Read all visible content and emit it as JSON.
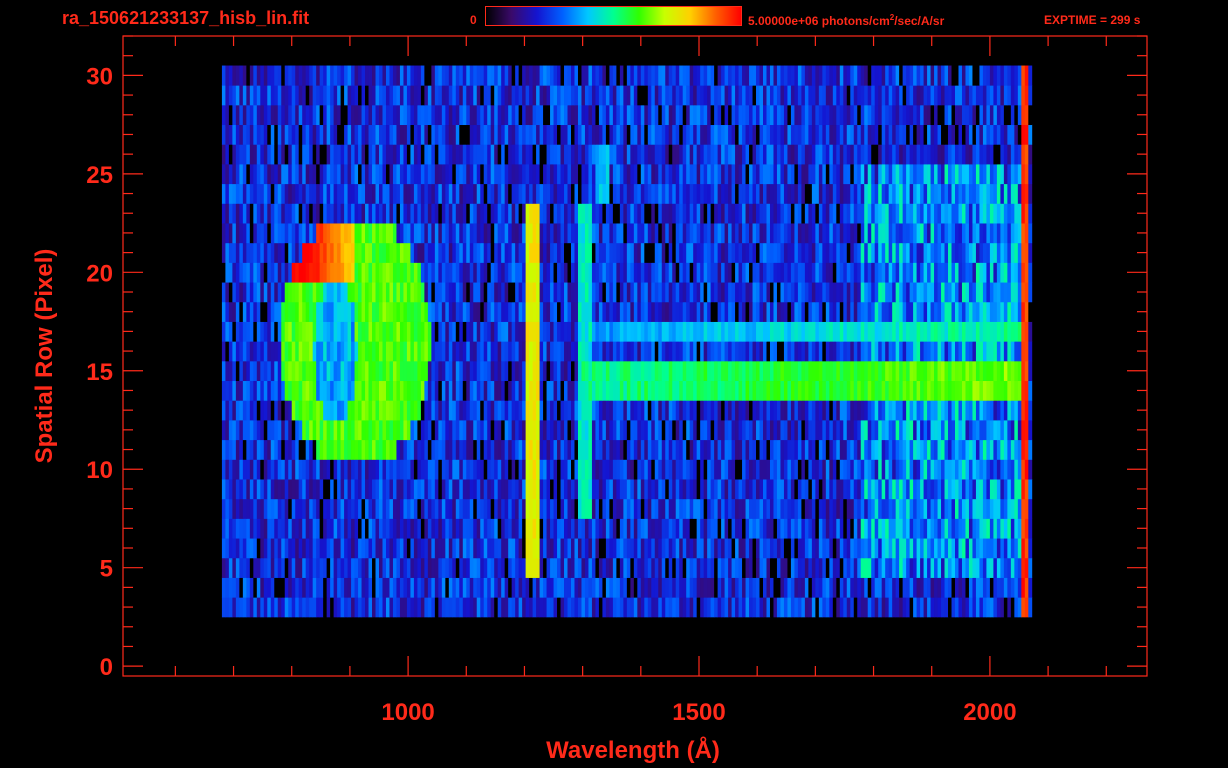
{
  "header": {
    "title": "ra_150621233137_hisb_lin.fit",
    "colorbar_min": "0",
    "colorbar_max_prefix": "5.00000e+06 photons/cm",
    "colorbar_max_sup": "2",
    "colorbar_max_suffix": "/sec/A/sr",
    "exptime": "EXPTIME = 299 s"
  },
  "colors": {
    "axis": "#ff2a1a",
    "background": "#000000",
    "colormap": [
      "#000000",
      "#3a0a6a",
      "#1414d0",
      "#0060ff",
      "#00c8ff",
      "#00ff90",
      "#30ff00",
      "#c8ff00",
      "#ffd000",
      "#ff6000",
      "#ff0000"
    ]
  },
  "chart_data": {
    "type": "heatmap",
    "title": "ra_150621233137_hisb_lin.fit",
    "xlabel": "Wavelength (Å)",
    "ylabel": "Spatial Row (Pixel)",
    "xlim": [
      510,
      2270
    ],
    "ylim": [
      -0.5,
      32
    ],
    "xticks": [
      1000,
      1500,
      2000
    ],
    "xtick_labels": [
      "1000",
      "1500",
      "2000"
    ],
    "yticks": [
      0,
      5,
      10,
      15,
      20,
      25,
      30
    ],
    "ytick_labels": [
      "0",
      "5",
      "10",
      "15",
      "20",
      "25",
      "30"
    ],
    "x_minor_step": 100,
    "y_minor_step": 1,
    "grid": false,
    "colorbar": {
      "min": 0,
      "max": 5000000,
      "units": "photons/cm2/sec/A/sr",
      "colormap": "rainbow"
    },
    "exptime_s": 299,
    "data_extent": {
      "x": [
        680,
        2070
      ],
      "rows": [
        3,
        30
      ]
    },
    "features": [
      {
        "name": "ring",
        "x": [
          780,
          1040
        ],
        "rows": [
          10,
          23
        ],
        "value_fraction": 0.55,
        "peak_fraction": 1.0
      },
      {
        "name": "line",
        "x_center": 1215,
        "rows": [
          5,
          23
        ],
        "value_fraction": 0.7
      },
      {
        "name": "line",
        "x_center": 1304,
        "rows": [
          8,
          23
        ],
        "value_fraction": 0.4
      },
      {
        "name": "line",
        "x_center": 1336,
        "rows": [
          24,
          26
        ],
        "value_fraction": 0.35
      },
      {
        "name": "band",
        "x": [
          1300,
          2060
        ],
        "rows": [
          14,
          15
        ],
        "value_fraction": 0.45
      },
      {
        "name": "band",
        "x": [
          1300,
          2060
        ],
        "rows": [
          17,
          17
        ],
        "value_fraction": 0.3
      },
      {
        "name": "continuum",
        "x": [
          1780,
          2060
        ],
        "rows": [
          5,
          25
        ],
        "value_fraction": 0.35
      },
      {
        "name": "edge",
        "x_center": 2062,
        "rows": [
          2,
          30
        ],
        "value_fraction": 0.9
      }
    ]
  }
}
